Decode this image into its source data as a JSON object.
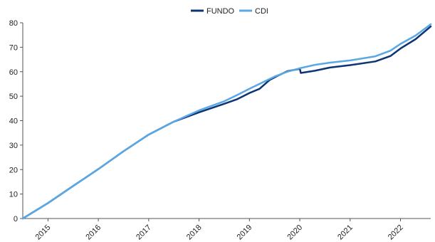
{
  "chart_data": {
    "type": "line",
    "title": "",
    "xlabel": "",
    "ylabel": "",
    "x_range": [
      2014.5,
      2022.6
    ],
    "ylim": [
      0,
      80
    ],
    "y_ticks": [
      0,
      10,
      20,
      30,
      40,
      50,
      60,
      70,
      80
    ],
    "x_ticks": [
      {
        "label": "2015",
        "value": 2015.0
      },
      {
        "label": "2016",
        "value": 2016.0
      },
      {
        "label": "2017",
        "value": 2017.0
      },
      {
        "label": "2018",
        "value": 2018.0
      },
      {
        "label": "2019",
        "value": 2019.0
      },
      {
        "label": "2020",
        "value": 2020.0
      },
      {
        "label": "2021",
        "value": 2021.0
      },
      {
        "label": "2022",
        "value": 2022.0
      }
    ],
    "grid": false,
    "legend_position": "top-center",
    "series": [
      {
        "name": "FUNDO",
        "color": "#0d3473",
        "points": [
          [
            2014.5,
            0
          ],
          [
            2015.0,
            6.3
          ],
          [
            2015.5,
            13.3
          ],
          [
            2016.0,
            20.2
          ],
          [
            2016.5,
            27.5
          ],
          [
            2017.0,
            34.3
          ],
          [
            2017.5,
            39.6
          ],
          [
            2018.0,
            43.4
          ],
          [
            2018.5,
            46.9
          ],
          [
            2018.75,
            48.7
          ],
          [
            2019.0,
            51.3
          ],
          [
            2019.2,
            53.0
          ],
          [
            2019.4,
            56.6
          ],
          [
            2019.55,
            58.2
          ],
          [
            2019.75,
            60.2
          ],
          [
            2020.0,
            61.2
          ],
          [
            2020.02,
            59.5
          ],
          [
            2020.3,
            60.4
          ],
          [
            2020.6,
            61.7
          ],
          [
            2021.0,
            62.7
          ],
          [
            2021.5,
            64.2
          ],
          [
            2021.8,
            66.4
          ],
          [
            2022.0,
            69.5
          ],
          [
            2022.3,
            73.3
          ],
          [
            2022.6,
            78.5
          ]
        ]
      },
      {
        "name": "CDI",
        "color": "#59a8e6",
        "points": [
          [
            2014.5,
            0
          ],
          [
            2015.0,
            6.3
          ],
          [
            2015.5,
            13.3
          ],
          [
            2016.0,
            20.2
          ],
          [
            2016.5,
            27.5
          ],
          [
            2017.0,
            34.3
          ],
          [
            2017.5,
            39.6
          ],
          [
            2018.0,
            44.2
          ],
          [
            2018.5,
            47.9
          ],
          [
            2018.75,
            50.4
          ],
          [
            2019.0,
            53.0
          ],
          [
            2019.5,
            58.0
          ],
          [
            2019.75,
            60.0
          ],
          [
            2020.0,
            61.4
          ],
          [
            2020.3,
            62.8
          ],
          [
            2020.6,
            63.7
          ],
          [
            2021.0,
            64.6
          ],
          [
            2021.5,
            66.3
          ],
          [
            2021.8,
            68.6
          ],
          [
            2022.0,
            71.4
          ],
          [
            2022.3,
            74.8
          ],
          [
            2022.6,
            79.4
          ]
        ]
      }
    ]
  }
}
